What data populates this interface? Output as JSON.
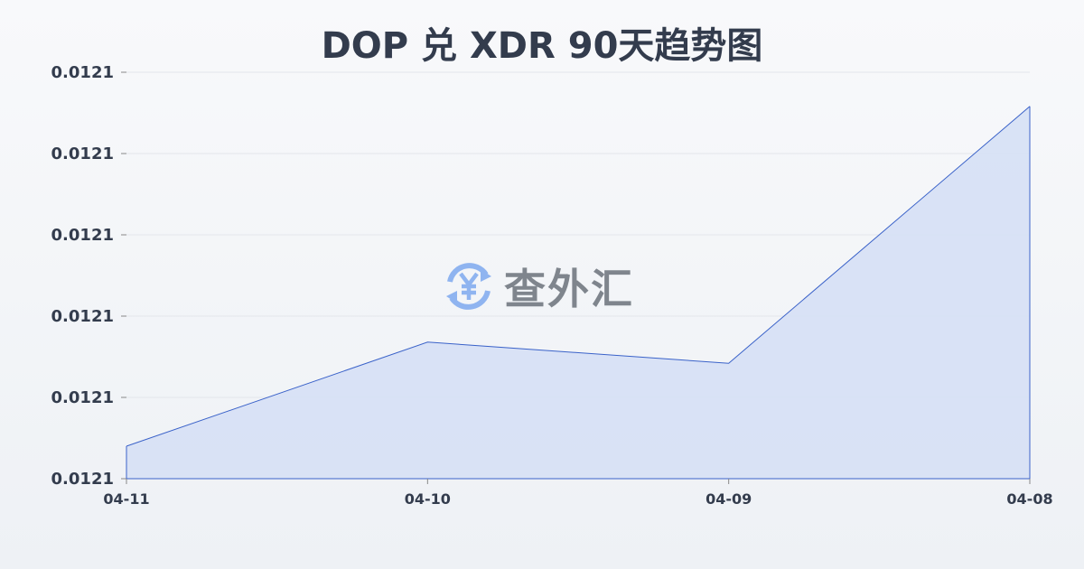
{
  "chart_data": {
    "type": "area",
    "title": "DOP 兑 XDR 90天趋势图",
    "categories": [
      "04-11",
      "04-10",
      "04-09",
      "04-08"
    ],
    "values": [
      0.012102,
      0.0121084,
      0.0121071,
      0.0121229
    ],
    "ylim": [
      0.0121,
      0.012125
    ],
    "yticks": [
      0.0121,
      0.012105,
      0.01211,
      0.012115,
      0.01212,
      0.012125
    ],
    "ytick_labels": [
      "0.0121",
      "0.0121",
      "0.0121",
      "0.0121",
      "0.0121",
      "0.0121"
    ],
    "grid": true,
    "colors": {
      "line": "#3a62c9",
      "fill": "#d6e0f5",
      "grid": "#e3e6eb",
      "text": "#333c4d"
    }
  },
  "watermark": {
    "text": "查外汇",
    "icon": "yen-exchange-icon",
    "icon_color": "#8fb4f0"
  }
}
